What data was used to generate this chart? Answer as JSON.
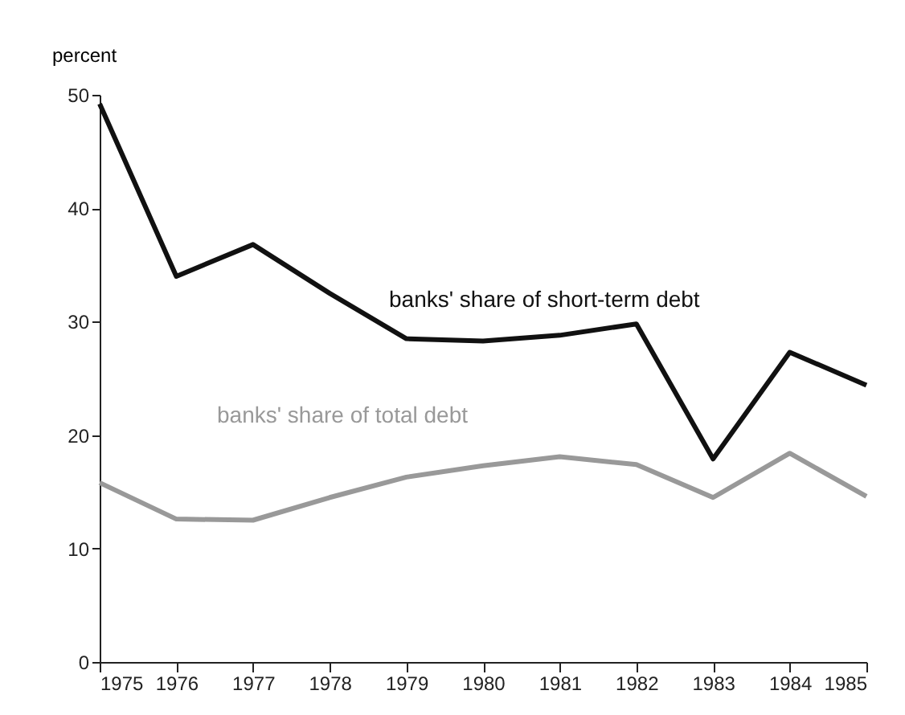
{
  "chart_data": {
    "type": "line",
    "ylabel": "percent",
    "x": [
      1975,
      1976,
      1977,
      1978,
      1979,
      1980,
      1981,
      1982,
      1983,
      1984,
      1985
    ],
    "series": [
      {
        "name": "banks' share of short-term debt",
        "color": "#111111",
        "values": [
          49.2,
          34.0,
          36.8,
          32.5,
          28.5,
          28.3,
          28.8,
          29.8,
          17.9,
          27.3,
          24.4
        ]
      },
      {
        "name": "banks' share of total debt",
        "color": "#999999",
        "values": [
          15.8,
          12.6,
          12.5,
          14.5,
          16.3,
          17.3,
          18.1,
          17.4,
          14.5,
          18.4,
          14.6
        ]
      }
    ],
    "xlim": [
      1975,
      1985
    ],
    "xticks": [
      1975,
      1976,
      1977,
      1978,
      1979,
      1980,
      1981,
      1982,
      1983,
      1984,
      1985
    ],
    "ylim": [
      0,
      50
    ],
    "yticks": [
      0,
      10,
      20,
      30,
      40,
      50
    ],
    "grid": false,
    "legend": false,
    "marker": "none",
    "line_style": "solid"
  }
}
